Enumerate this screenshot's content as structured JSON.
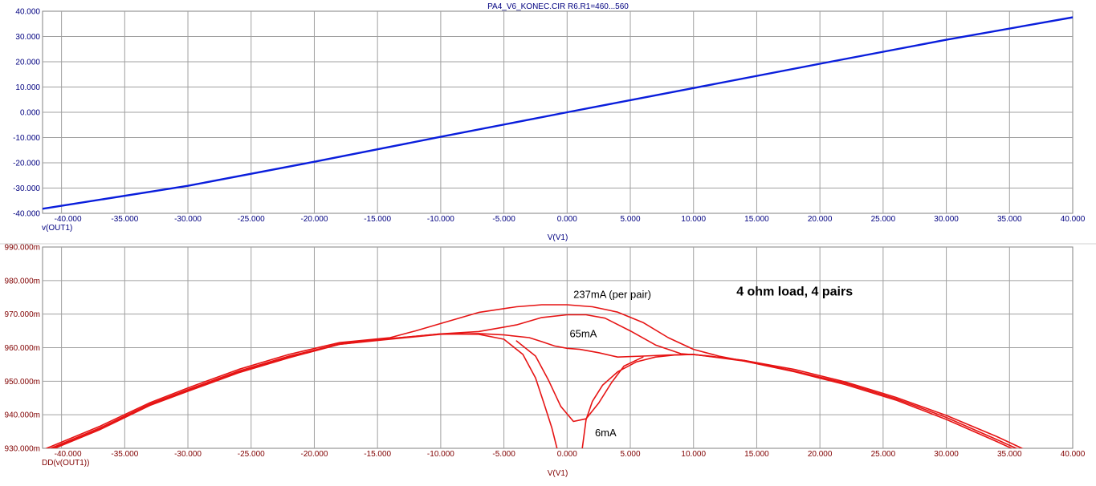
{
  "window_title": "PA4_V6_KONEC.CIR R6.R1=460...560",
  "colors": {
    "top_trace": "#0a1edc",
    "top_axis": "#000080",
    "bottom_trace": "#e61414",
    "bottom_axis": "#800000",
    "grid": "#a0a0a0",
    "plot_bg": "#ffffff"
  },
  "chart_data": [
    {
      "type": "line",
      "title": "PA4_V6_KONEC.CIR R6.R1=460...560",
      "xlabel": "V(V1)",
      "ylabel": "v(OUT1)",
      "xlim": [
        -41.5,
        40.0
      ],
      "ylim": [
        -40.0,
        40.0
      ],
      "x_ticks": [
        -40,
        -35,
        -30,
        -25,
        -20,
        -15,
        -10,
        -5,
        0,
        5,
        10,
        15,
        20,
        25,
        30,
        35,
        40
      ],
      "x_tick_labels": [
        "-40.000",
        "-35.000",
        "-30.000",
        "-25.000",
        "-20.000",
        "-15.000",
        "-10.000",
        "-5.000",
        "0.000",
        "5.000",
        "10.000",
        "15.000",
        "20.000",
        "25.000",
        "30.000",
        "35.000",
        "40.000"
      ],
      "y_ticks": [
        40,
        30,
        20,
        10,
        0,
        -10,
        -20,
        -30,
        -40
      ],
      "y_tick_labels": [
        "40.000",
        "30.000",
        "20.000",
        "10.000",
        "0.000",
        "-10.000",
        "-20.000",
        "-30.000",
        "-40.000"
      ],
      "grid": true,
      "series": [
        {
          "x": [
            -41.5,
            -30,
            -20,
            -10,
            0,
            10,
            20,
            30,
            40
          ],
          "y": [
            -38.2,
            -29.1,
            -19.6,
            -9.7,
            0.0,
            9.6,
            19.2,
            28.7,
            37.6
          ]
        }
      ]
    },
    {
      "type": "line",
      "xlabel": "V(V1)",
      "ylabel": "DD(v(OUT1))",
      "xlim": [
        -41.5,
        40.0
      ],
      "ylim": [
        0.93,
        0.99
      ],
      "x_ticks": [
        -40,
        -35,
        -30,
        -25,
        -20,
        -15,
        -10,
        -5,
        0,
        5,
        10,
        15,
        20,
        25,
        30,
        35,
        40
      ],
      "x_tick_labels": [
        "-40.000",
        "-35.000",
        "-30.000",
        "-25.000",
        "-20.000",
        "-15.000",
        "-10.000",
        "-5.000",
        "0.000",
        "5.000",
        "10.000",
        "15.000",
        "20.000",
        "25.000",
        "30.000",
        "35.000",
        "40.000"
      ],
      "y_ticks": [
        0.99,
        0.98,
        0.97,
        0.96,
        0.95,
        0.94,
        0.93
      ],
      "y_tick_labels": [
        "990.000m",
        "980.000m",
        "970.000m",
        "960.000m",
        "950.000m",
        "940.000m",
        "930.000m"
      ],
      "grid": true,
      "annotations": [
        {
          "text": "237mA (per pair)",
          "x": 0.5,
          "y": 0.9748
        },
        {
          "text": "65mA",
          "x": 0.2,
          "y": 0.9631
        },
        {
          "text": "6mA",
          "x": 2.2,
          "y": 0.9336
        },
        {
          "text": "4 ohm load, 4 pairs",
          "x": 18.0,
          "y": 0.9755
        }
      ],
      "series": [
        {
          "x": [
            -41.5,
            -37,
            -33,
            -30,
            -26,
            -22,
            -18,
            -14,
            -10,
            -7,
            -5,
            -3,
            -2,
            -1,
            0,
            1,
            2.5,
            4,
            6,
            8,
            10,
            14,
            18,
            22,
            26,
            30,
            34,
            37
          ],
          "y": [
            0.9285,
            0.9355,
            0.9428,
            0.947,
            0.9525,
            0.957,
            0.961,
            0.9625,
            0.964,
            0.9642,
            0.9638,
            0.963,
            0.9618,
            0.9605,
            0.9598,
            0.9595,
            0.9585,
            0.9572,
            0.9575,
            0.9578,
            0.958,
            0.9562,
            0.9535,
            0.9498,
            0.9452,
            0.9398,
            0.9335,
            0.9282
          ]
        },
        {
          "x": [
            -41.5,
            -37,
            -33,
            -30,
            -26,
            -22,
            -18,
            -14,
            -10,
            -7,
            -4,
            -2,
            0,
            1.5,
            3,
            5,
            7,
            9,
            11,
            14,
            18,
            22,
            26,
            30,
            34,
            37
          ],
          "y": [
            0.929,
            0.936,
            0.9432,
            0.9475,
            0.953,
            0.9575,
            0.961,
            0.9627,
            0.9641,
            0.9648,
            0.9668,
            0.969,
            0.9698,
            0.9698,
            0.9688,
            0.965,
            0.9608,
            0.9582,
            0.9576,
            0.9562,
            0.953,
            0.9494,
            0.9448,
            0.9392,
            0.9326,
            0.9275
          ]
        },
        {
          "x": [
            -41.5,
            -37,
            -33,
            -30,
            -26,
            -22,
            -18,
            -14,
            -12,
            -10,
            -7,
            -4,
            -2,
            0,
            2,
            4,
            6,
            8,
            10,
            12,
            14,
            18,
            22,
            26,
            30,
            34,
            37
          ],
          "y": [
            0.9295,
            0.9365,
            0.9436,
            0.948,
            0.9535,
            0.958,
            0.9615,
            0.963,
            0.965,
            0.9672,
            0.9705,
            0.9722,
            0.9728,
            0.9728,
            0.9722,
            0.9706,
            0.9675,
            0.963,
            0.9595,
            0.9575,
            0.956,
            0.9528,
            0.949,
            0.9444,
            0.9386,
            0.932,
            0.9268
          ]
        },
        {
          "x": [
            -41.5,
            -37,
            -33,
            -30,
            -26,
            -22,
            -18,
            -14,
            -10,
            -7,
            -5,
            -3.5,
            -2.5,
            -1.8,
            -1.2,
            -0.8
          ],
          "y": [
            0.9288,
            0.9357,
            0.943,
            0.9472,
            0.9527,
            0.9572,
            0.9612,
            0.9627,
            0.9641,
            0.964,
            0.9625,
            0.958,
            0.951,
            0.943,
            0.936,
            0.93
          ]
        },
        {
          "x": [
            1.2,
            1.5,
            2,
            2.8,
            4,
            5.5,
            7,
            8.5,
            10,
            14,
            18
          ],
          "y": [
            0.93,
            0.9385,
            0.944,
            0.9488,
            0.9528,
            0.9558,
            0.9572,
            0.9578,
            0.958,
            0.956,
            0.953
          ]
        },
        {
          "x": [
            -4,
            -2.5,
            -1.5,
            -0.5,
            0.5,
            1.5,
            2.5,
            3.5,
            4.5,
            6
          ],
          "y": [
            0.962,
            0.9575,
            0.9505,
            0.9425,
            0.938,
            0.9388,
            0.9435,
            0.9495,
            0.9545,
            0.9572
          ]
        }
      ]
    }
  ]
}
